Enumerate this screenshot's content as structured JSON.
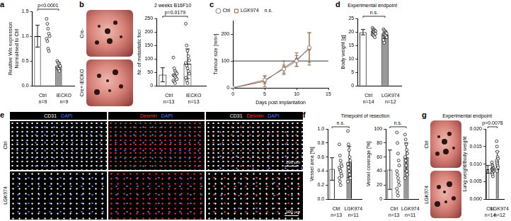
{
  "chart_data": [
    {
      "panel": "a",
      "type": "bar",
      "y_label": [
        "Realtive Wls expression",
        "Normalised to Ctrl"
      ],
      "categories": [
        "Ctrl",
        "iECKO"
      ],
      "sample_sizes": [
        "n=9",
        "n=9"
      ],
      "values": [
        1.0,
        0.4
      ],
      "errors": [
        0.22,
        0.07
      ],
      "points": [
        [
          1.35,
          1.25,
          1.15,
          1.05,
          1.0,
          0.95,
          0.9,
          0.75,
          0.7
        ],
        [
          0.5,
          0.47,
          0.45,
          0.42,
          0.4,
          0.38,
          0.36,
          0.34,
          0.3
        ]
      ],
      "colors": [
        "#ffffff",
        "#999999"
      ],
      "marker": "circle",
      "ylim": [
        0,
        1.5
      ],
      "yticks": [
        {
          "value": 0,
          "label": "0.0"
        },
        0.5,
        {
          "value": 1,
          "label": "1.0"
        },
        1.5
      ],
      "annotation": "p<0.0001",
      "grid": false
    },
    {
      "panel": "b",
      "type": "bar",
      "title": "2 weeks B16F10",
      "y_label": "Nr. of metastatic foci",
      "categories": [
        "Ctrl",
        "iECKO"
      ],
      "sample_sizes": [
        "n=13",
        "n=13"
      ],
      "values": [
        41,
        82
      ],
      "errors": [
        26,
        55
      ],
      "points": [
        [
          105,
          65,
          55,
          50,
          45,
          40,
          38,
          35,
          30,
          25,
          20,
          15,
          10
        ],
        [
          230,
          150,
          130,
          110,
          95,
          85,
          75,
          65,
          55,
          45,
          30,
          20,
          10
        ]
      ],
      "colors": [
        "#ffffff",
        "#ffffff"
      ],
      "marker": "circle",
      "ylim": [
        0,
        250
      ],
      "yticks": [
        0,
        50,
        100,
        150,
        200,
        250
      ],
      "annotation": "p=0.0179",
      "grid": false
    },
    {
      "panel": "c",
      "type": "line",
      "x_label": "Days post implantation",
      "y_label": "Tumour size [mm²]",
      "x": [
        0,
        5,
        8,
        10,
        12
      ],
      "series": [
        {
          "name": "Ctrl",
          "color": "#7f7f7f",
          "marker": "circle",
          "values": [
            0,
            30,
            70,
            100,
            150
          ],
          "errors": [
            0,
            15,
            15,
            20,
            55
          ]
        },
        {
          "name": "LGK974",
          "color": "#a0522d",
          "marker": "square",
          "values": [
            0,
            25,
            75,
            105,
            145
          ],
          "errors": [
            0,
            20,
            25,
            25,
            60
          ]
        }
      ],
      "xlim": [
        0,
        15
      ],
      "xticks": [
        0,
        5,
        10,
        15
      ],
      "ylim": [
        0,
        250
      ],
      "yticks": [
        0,
        100,
        200
      ],
      "hline": 100,
      "annotation": "n.s.",
      "legend": "top-left",
      "grid": false
    },
    {
      "panel": "d",
      "type": "bar",
      "title": "Experimental endpoint",
      "y_label": "Body weight [g]",
      "categories": [
        "Ctrl",
        "LGK974"
      ],
      "sample_sizes": [
        "n=14",
        "n=12"
      ],
      "values": [
        19.9,
        19.0
      ],
      "errors": [
        1.0,
        1.4
      ],
      "points": [
        [
          21.5,
          21,
          20.8,
          20.5,
          20.3,
          20,
          20,
          19.8,
          19.5,
          19.3,
          19,
          18.8,
          18.5,
          18
        ],
        [
          21,
          20.5,
          20,
          19.8,
          19.5,
          19.2,
          19,
          18.8,
          18.5,
          18,
          17,
          16
        ]
      ],
      "colors": [
        "#ffffff",
        "#999999"
      ],
      "marker": "circle",
      "ylim": [
        0,
        25
      ],
      "yticks": [
        0,
        5,
        10,
        15,
        20,
        25
      ],
      "annotation": "n.s.",
      "grid": false
    },
    {
      "panel": "f",
      "type": "bar",
      "title": "Timepoint of resection",
      "y_label": "Vessel area [%]",
      "categories": [
        "Ctrl",
        "LGK974"
      ],
      "sample_sizes": [
        "n=13",
        "n=11"
      ],
      "values": [
        0.43,
        0.53
      ],
      "errors": [
        0.16,
        0.22
      ],
      "points": [
        [
          0.78,
          0.62,
          0.55,
          0.5,
          0.47,
          0.45,
          0.42,
          0.4,
          0.36,
          0.33,
          0.3,
          0.25,
          0.2
        ],
        [
          0.97,
          0.78,
          0.7,
          0.6,
          0.55,
          0.5,
          0.45,
          0.4,
          0.35,
          0.3,
          0.25
        ]
      ],
      "colors": [
        "#ffffff",
        "#999999"
      ],
      "marker": "circle",
      "ylim": [
        0,
        1
      ],
      "yticks": [
        {
          "value": 0,
          "label": "0.0"
        },
        0.2,
        0.4,
        0.6,
        0.8,
        {
          "value": 1,
          "label": "1.0"
        }
      ],
      "annotation": "n.s.",
      "grid": false
    },
    {
      "panel": "f",
      "type": "bar",
      "y_label": "Vessel coverage [%]",
      "categories": [
        "Ctrl",
        "LGK974"
      ],
      "sample_sizes": [
        "n=13",
        "n=11"
      ],
      "values": [
        42,
        60
      ],
      "errors": [
        28,
        20
      ],
      "points": [
        [
          95,
          80,
          65,
          55,
          48,
          40,
          35,
          30,
          25,
          20,
          15,
          10,
          5
        ],
        [
          92,
          85,
          78,
          70,
          65,
          60,
          55,
          48,
          40,
          35,
          30
        ]
      ],
      "colors": [
        "#ffffff",
        "#999999"
      ],
      "marker": "circle",
      "ylim": [
        0,
        100
      ],
      "yticks": [
        0,
        20,
        40,
        60,
        80,
        100
      ],
      "annotation": "n.s.",
      "grid": false
    },
    {
      "panel": "g",
      "type": "bar",
      "title": "Experimental endpoint",
      "y_label": "Lung weight/Body weight",
      "categories": [
        "Ctrl",
        "LGK974"
      ],
      "sample_sizes": [
        "n=14",
        "n=12"
      ],
      "values": [
        0.0085,
        0.011
      ],
      "errors": [
        0.0011,
        0.0026
      ],
      "points": [
        [
          0.0105,
          0.0098,
          0.0095,
          0.009,
          0.0088,
          0.0086,
          0.0085,
          0.0083,
          0.008,
          0.0078,
          0.0076,
          0.0074,
          0.007,
          0.0065
        ],
        [
          0.0165,
          0.015,
          0.0135,
          0.012,
          0.0115,
          0.011,
          0.0105,
          0.01,
          0.0095,
          0.009,
          0.0085,
          0.008
        ]
      ],
      "colors": [
        "#ffffff",
        "#999999"
      ],
      "marker": "circle",
      "ylim": [
        0,
        0.02
      ],
      "yticks": [
        {
          "value": 0,
          "label": "0.000"
        },
        {
          "value": 0.005,
          "label": "0.005"
        },
        {
          "value": 0.01,
          "label": "0.010"
        },
        {
          "value": 0.015,
          "label": "0.015"
        },
        {
          "value": 0.02,
          "label": "0.020"
        }
      ],
      "annotation": "p=0.0078",
      "grid": false
    }
  ],
  "images": [
    {
      "panel": "b",
      "row_labels": [
        "Cre-",
        "Cre+ iECKO"
      ]
    },
    {
      "panel": "e",
      "channels": [
        [
          {
            "text": "CD31",
            "color": "#ffffff"
          },
          {
            "text": "DAPI",
            "color": "#4d7dff"
          }
        ],
        [
          {
            "text": "Desmin",
            "color": "#ff3030"
          },
          {
            "text": "DAPI",
            "color": "#4d7dff"
          }
        ],
        [
          {
            "text": "CD31",
            "color": "#ffffff"
          },
          {
            "text": "Desmin",
            "color": "#ff3030"
          },
          {
            "text": "DAPI",
            "color": "#4d7dff"
          }
        ]
      ],
      "row_labels": [
        "Ctrl",
        "LGK974"
      ],
      "scale_bar": "100 µm"
    },
    {
      "panel": "g",
      "row_labels": [
        "Ctrl",
        "LGK974"
      ]
    }
  ]
}
